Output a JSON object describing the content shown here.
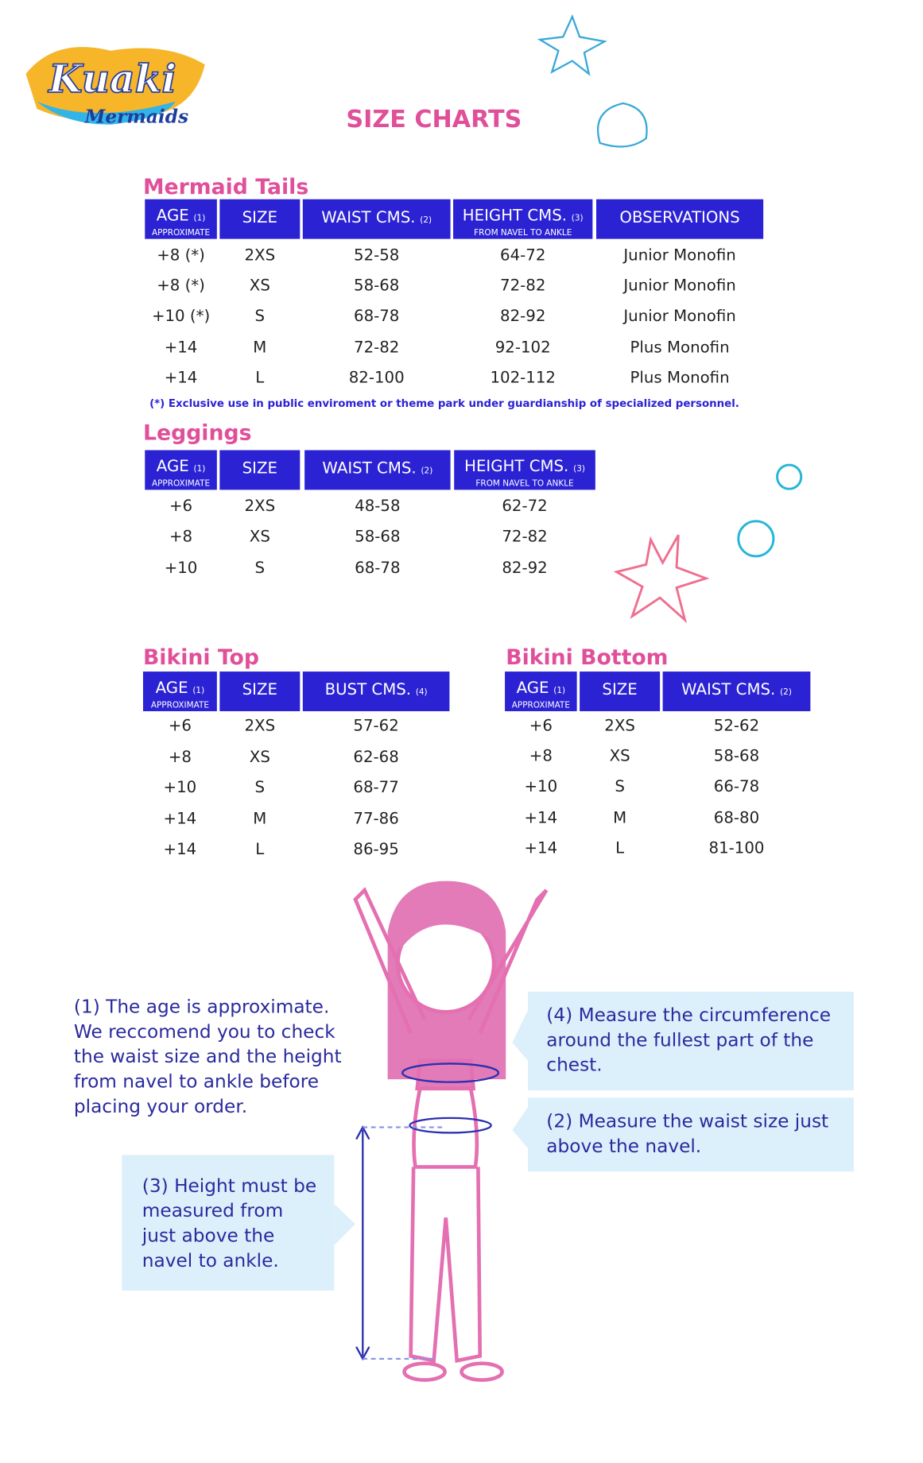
{
  "logo": {
    "name": "Kuaki",
    "tagline": "Mermaids"
  },
  "title": "SIZE CHARTS",
  "tables": [
    {
      "title": "Mermaid Tails",
      "headers": [
        {
          "label": "AGE",
          "note": "(1)",
          "sub": "APPROXIMATE"
        },
        {
          "label": "SIZE"
        },
        {
          "label": "WAIST CMS.",
          "note": "(2)"
        },
        {
          "label": "HEIGHT CMS.",
          "note": "(3)",
          "sub": "FROM NAVEL TO ANKLE"
        },
        {
          "label": "OBSERVATIONS"
        }
      ],
      "rows": [
        [
          "+8 (*)",
          "2XS",
          "52-58",
          "64-72",
          "Junior Monofin"
        ],
        [
          "+8  (*)",
          "XS",
          "58-68",
          "72-82",
          "Junior Monofin"
        ],
        [
          "+10 (*)",
          "S",
          "68-78",
          "82-92",
          "Junior Monofin"
        ],
        [
          "+14",
          "M",
          "72-82",
          "92-102",
          "Plus Monofin"
        ],
        [
          "+14",
          "L",
          "82-100",
          "102-112",
          "Plus Monofin"
        ]
      ],
      "footnote": "(*) Exclusive use in public enviroment or theme park under guardianship of specialized personnel."
    },
    {
      "title": "Leggings",
      "headers": [
        {
          "label": "AGE",
          "note": "(1)",
          "sub": "APPROXIMATE"
        },
        {
          "label": "SIZE"
        },
        {
          "label": "WAIST CMS.",
          "note": "(2)"
        },
        {
          "label": "HEIGHT CMS.",
          "note": "(3)",
          "sub": "FROM NAVEL TO ANKLE"
        }
      ],
      "rows": [
        [
          "+6",
          "2XS",
          "48-58",
          "62-72"
        ],
        [
          "+8",
          "XS",
          "58-68",
          "72-82"
        ],
        [
          "+10",
          "S",
          "68-78",
          "82-92"
        ]
      ]
    },
    {
      "title": "Bikini Top",
      "headers": [
        {
          "label": "AGE",
          "note": "(1)",
          "sub": "APPROXIMATE"
        },
        {
          "label": "SIZE"
        },
        {
          "label": "BUST CMS.",
          "note": "(4)"
        }
      ],
      "rows": [
        [
          "+6",
          "2XS",
          "57-62"
        ],
        [
          "+8",
          "XS",
          "62-68"
        ],
        [
          "+10",
          "S",
          "68-77"
        ],
        [
          "+14",
          "M",
          "77-86"
        ],
        [
          "+14",
          "L",
          "86-95"
        ]
      ]
    },
    {
      "title": "Bikini Bottom",
      "headers": [
        {
          "label": "AGE",
          "note": "(1)",
          "sub": "APPROXIMATE"
        },
        {
          "label": "SIZE"
        },
        {
          "label": "WAIST CMS.",
          "note": "(2)"
        }
      ],
      "rows": [
        [
          "+6",
          "2XS",
          "52-62"
        ],
        [
          "+8",
          "XS",
          "58-68"
        ],
        [
          "+10",
          "S",
          "66-78"
        ],
        [
          "+14",
          "M",
          "68-80"
        ],
        [
          "+14",
          "L",
          "81-100"
        ]
      ]
    }
  ],
  "notes": [
    {
      "lines": [
        "(1) The age is approximate.",
        "We reccomend you to check",
        "the waist size and the height",
        "from navel to ankle before",
        "placing your order."
      ]
    },
    {
      "lines": [
        "(4) Measure the circumference",
        "around the fullest part of the",
        "chest."
      ]
    },
    {
      "lines": [
        "(2) Measure the waist size just",
        "above the navel."
      ]
    },
    {
      "lines": [
        "(3) Height must be",
        "measured from",
        "just above the",
        "navel to ankle."
      ]
    }
  ]
}
